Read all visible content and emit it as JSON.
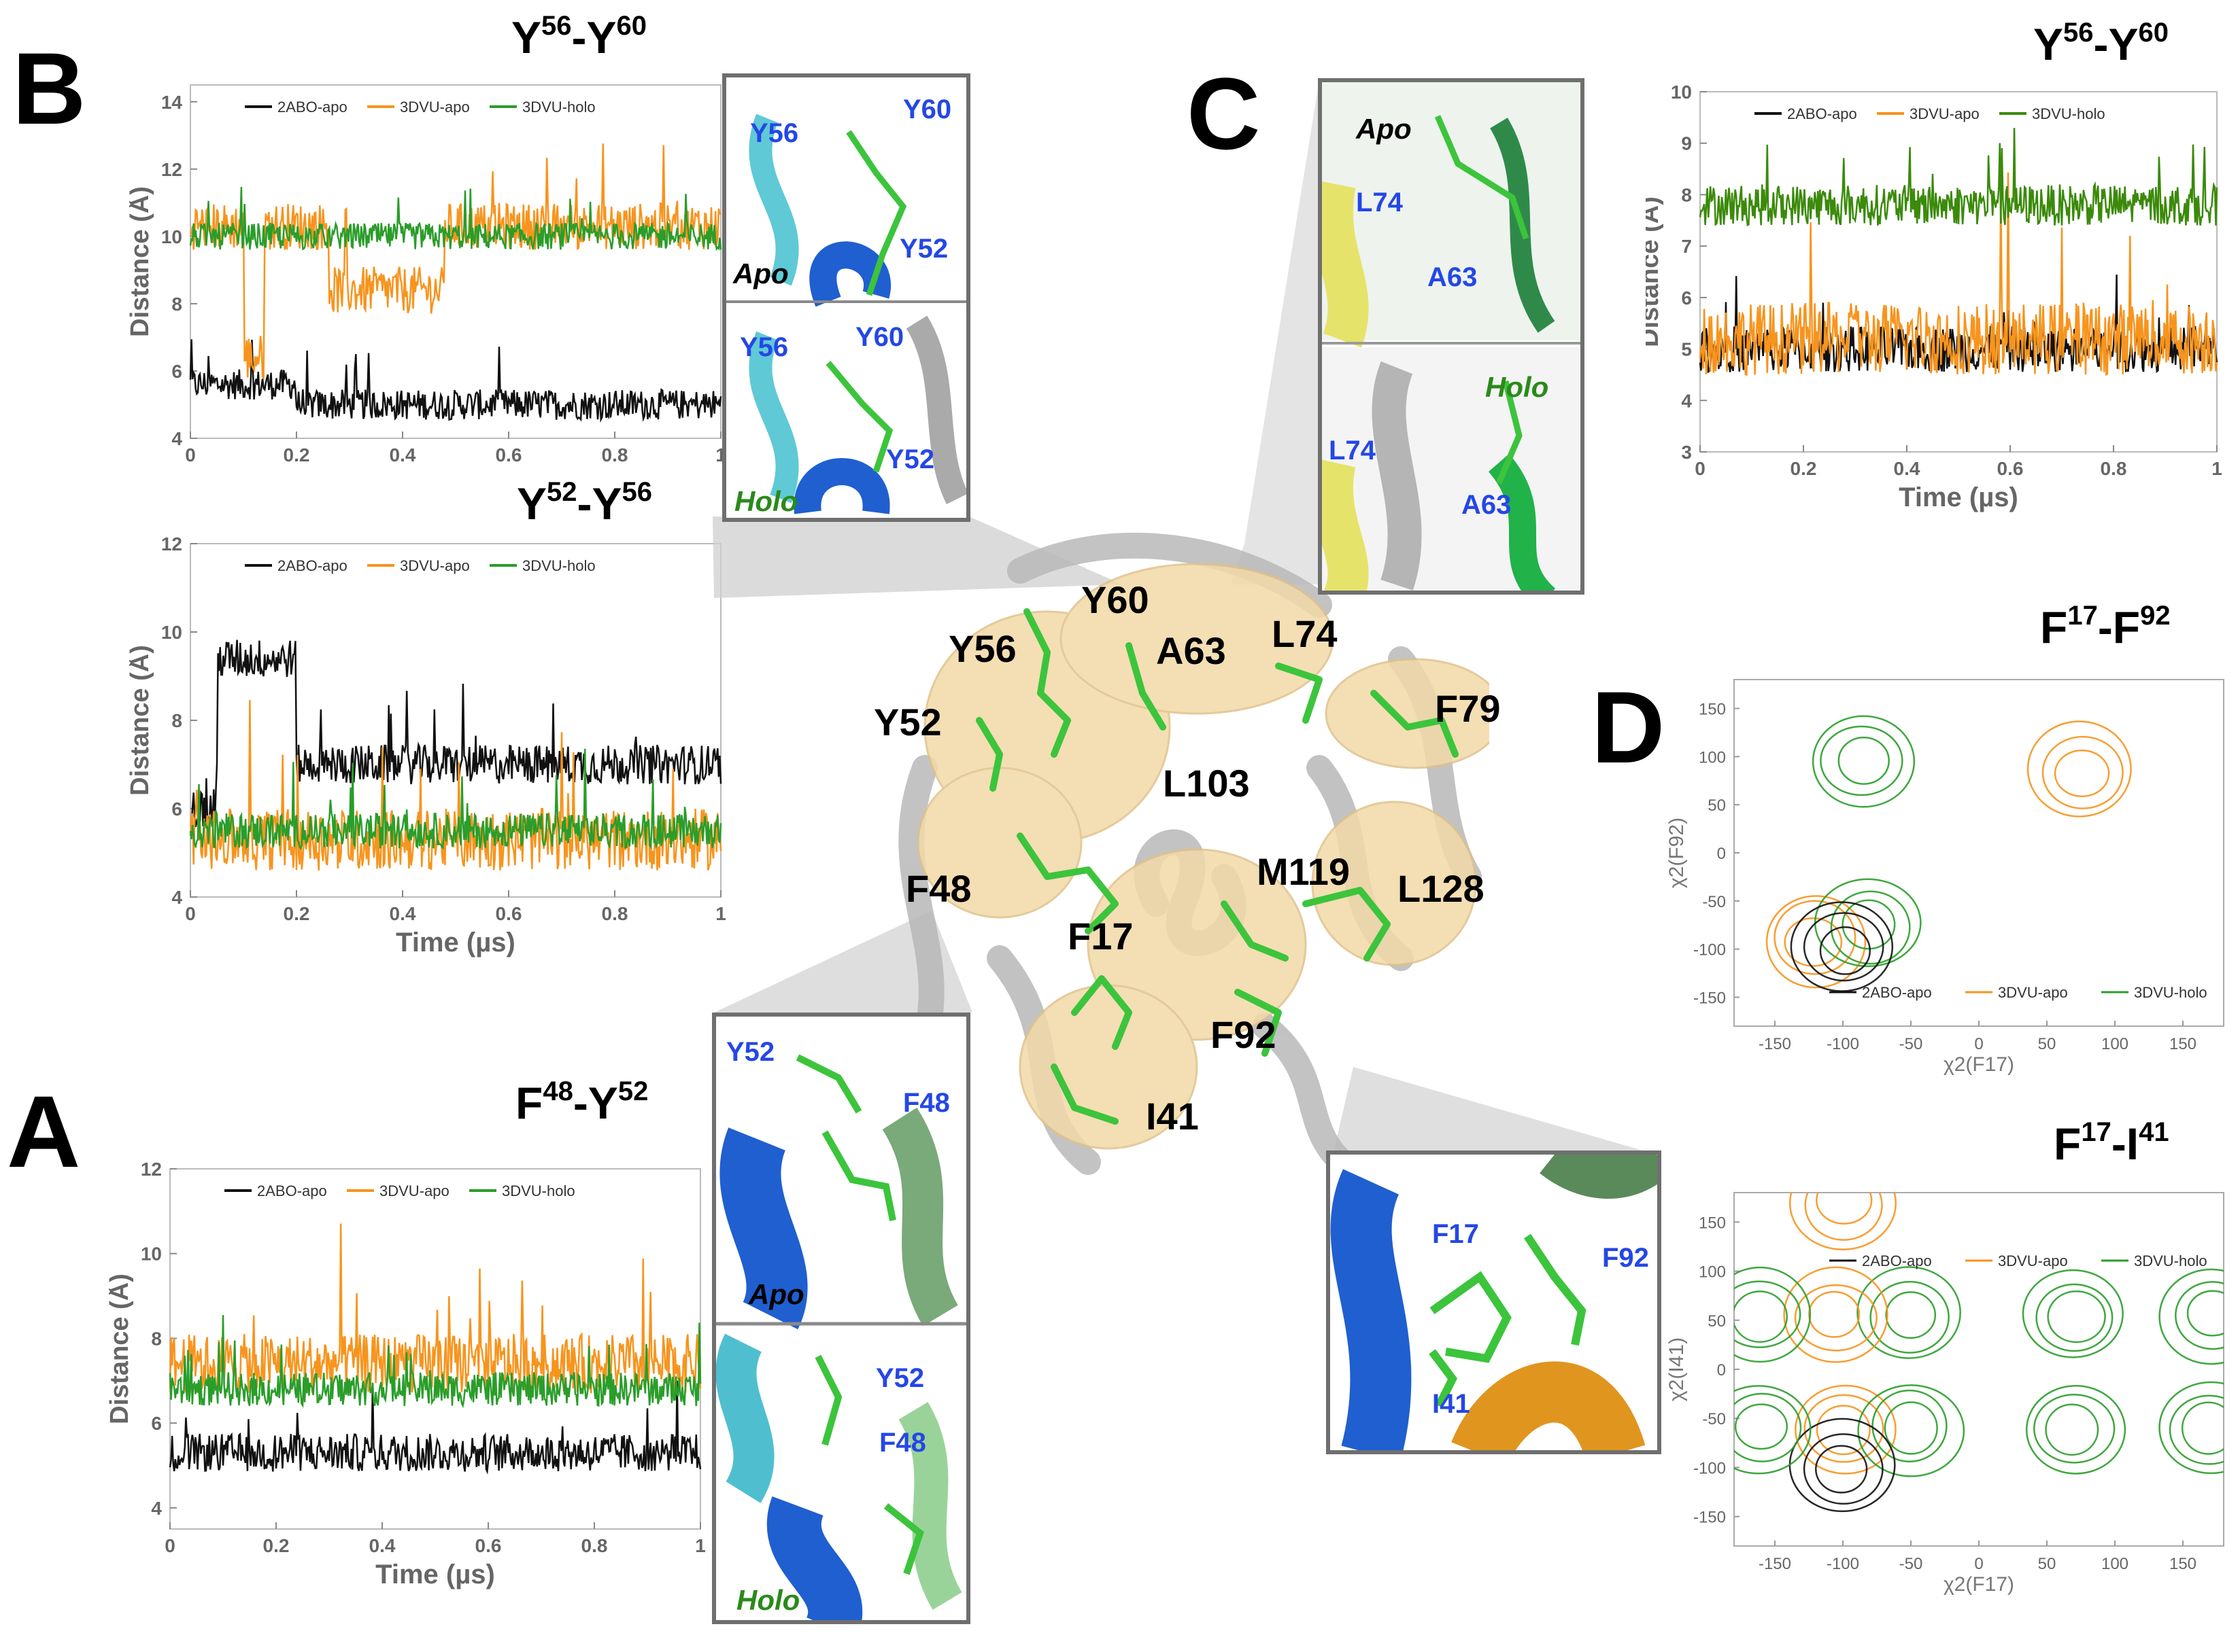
{
  "panels": {
    "A": "A",
    "B": "B",
    "C": "C",
    "D": "D"
  },
  "colors": {
    "black": "#111111",
    "orange": "#f7941d",
    "green": "#2a9d2a",
    "dark_green": "#3b8a0a",
    "axis": "#888888"
  },
  "legend": [
    "2ABO-apo",
    "3DVU-apo",
    "3DVU-holo"
  ],
  "titles": {
    "b1": {
      "main": "Y",
      "sup1": "56",
      "mid": "-Y",
      "sup2": "60"
    },
    "b2": {
      "main": "Y",
      "sup1": "52",
      "mid": "-Y",
      "sup2": "56"
    },
    "a1": {
      "main": "F",
      "sup1": "48",
      "mid": "-Y",
      "sup2": "52"
    },
    "c1": {
      "main": "Y",
      "sup1": "56",
      "mid": "-Y",
      "sup2": "60"
    },
    "d1": {
      "main": "F",
      "sup1": "17",
      "mid": "-F",
      "sup2": "92"
    },
    "d2": {
      "main": "F",
      "sup1": "17",
      "mid": "-I",
      "sup2": "41"
    }
  },
  "chart_data": [
    {
      "id": "B-Y56-Y60",
      "type": "line",
      "title": "Y56-Y60",
      "xlabel": "",
      "ylabel": "Distance (Å)",
      "xlim": [
        0,
        1
      ],
      "ylim": [
        4,
        14.5
      ],
      "xticks": [
        "0",
        "0.2",
        "0.4",
        "0.6",
        "0.8",
        "1"
      ],
      "yticks": [
        "4",
        "6",
        "8",
        "10",
        "12",
        "14"
      ],
      "series": [
        {
          "name": "2ABO-apo",
          "mean": 5.0
        },
        {
          "name": "3DVU-apo",
          "mean": 10.3
        },
        {
          "name": "3DVU-holo",
          "mean": 10.0
        }
      ]
    },
    {
      "id": "B-Y52-Y56",
      "type": "line",
      "title": "Y52-Y56",
      "xlabel": "Time (µs)",
      "ylabel": "Distance (Å)",
      "xlim": [
        0,
        1
      ],
      "ylim": [
        4,
        12
      ],
      "xticks": [
        "0",
        "0.2",
        "0.4",
        "0.6",
        "0.8",
        "1"
      ],
      "yticks": [
        "4",
        "6",
        "8",
        "10",
        "12"
      ],
      "series": [
        {
          "name": "2ABO-apo",
          "mean": 7.0
        },
        {
          "name": "3DVU-apo",
          "mean": 5.3
        },
        {
          "name": "3DVU-holo",
          "mean": 5.5
        }
      ]
    },
    {
      "id": "A-F48-Y52",
      "type": "line",
      "title": "F48-Y52",
      "xlabel": "Time (µs)",
      "ylabel": "Distance (Å)",
      "xlim": [
        0,
        1
      ],
      "ylim": [
        3.5,
        12
      ],
      "xticks": [
        "0",
        "0.2",
        "0.4",
        "0.6",
        "0.8",
        "1"
      ],
      "yticks": [
        "4",
        "6",
        "8",
        "10",
        "12"
      ],
      "series": [
        {
          "name": "2ABO-apo",
          "mean": 5.3
        },
        {
          "name": "3DVU-apo",
          "mean": 7.4
        },
        {
          "name": "3DVU-holo",
          "mean": 6.8
        }
      ]
    },
    {
      "id": "C-Y56-Y60",
      "type": "line",
      "title": "Y56-Y60",
      "xlabel": "Time (µs)",
      "ylabel": "Distance (Å)",
      "xlim": [
        0,
        1
      ],
      "ylim": [
        3,
        10
      ],
      "xticks": [
        "0",
        "0.2",
        "0.4",
        "0.6",
        "0.8",
        "1"
      ],
      "yticks": [
        "3",
        "4",
        "5",
        "6",
        "7",
        "8",
        "9",
        "10"
      ],
      "series": [
        {
          "name": "2ABO-apo",
          "mean": 5.0
        },
        {
          "name": "3DVU-apo",
          "mean": 5.2
        },
        {
          "name": "3DVU-holo",
          "mean": 7.8
        }
      ]
    },
    {
      "id": "D-F17-F92",
      "type": "scatter",
      "title": "F17-F92",
      "xlabel": "χ2(F17)",
      "ylabel": "χ2(F92)",
      "xlim": [
        -180,
        180
      ],
      "ylim": [
        -180,
        180
      ],
      "xticks": [
        "-150",
        "-100",
        "-50",
        "0",
        "50",
        "100",
        "150"
      ],
      "yticks": [
        "150",
        "100",
        "50",
        "0",
        "-50",
        "-100",
        "-150"
      ],
      "clusters": [
        {
          "series": "3DVU-holo",
          "x": -85,
          "y": 95
        },
        {
          "series": "3DVU-apo",
          "x": 75,
          "y": 85
        },
        {
          "series": "3DVU-apo",
          "x": -120,
          "y": -90
        },
        {
          "series": "3DVU-holo",
          "x": -80,
          "y": -75
        },
        {
          "series": "2ABO-apo",
          "x": -100,
          "y": -100
        }
      ]
    },
    {
      "id": "D-F17-I41",
      "type": "scatter",
      "title": "F17-I41",
      "xlabel": "χ2(F17)",
      "ylabel": "χ2(I41)",
      "xlim": [
        -180,
        180
      ],
      "ylim": [
        -180,
        180
      ],
      "xticks": [
        "-150",
        "-100",
        "-50",
        "0",
        "50",
        "100",
        "150"
      ],
      "yticks": [
        "150",
        "100",
        "50",
        "0",
        "-50",
        "-100",
        "-150"
      ],
      "clusters": [
        {
          "series": "3DVU-apo",
          "x": -100,
          "y": 170
        },
        {
          "series": "3DVU-holo",
          "x": -50,
          "y": 55
        },
        {
          "series": "3DVU-apo",
          "x": -105,
          "y": 55
        },
        {
          "series": "3DVU-holo",
          "x": 70,
          "y": 55
        },
        {
          "series": "3DVU-holo",
          "x": 170,
          "y": 55
        },
        {
          "series": "3DVU-apo",
          "x": -100,
          "y": -60
        },
        {
          "series": "3DVU-holo",
          "x": -50,
          "y": -60
        },
        {
          "series": "3DVU-holo",
          "x": 70,
          "y": -60
        },
        {
          "series": "3DVU-holo",
          "x": 170,
          "y": -60
        },
        {
          "series": "2ABO-apo",
          "x": -100,
          "y": -100
        },
        {
          "series": "3DVU-holo",
          "x": -160,
          "y": -60
        },
        {
          "series": "3DVU-holo",
          "x": -160,
          "y": 55
        }
      ]
    }
  ],
  "center_residues": [
    "Y60",
    "Y56",
    "A63",
    "L74",
    "Y52",
    "F79",
    "L103",
    "F48",
    "M119",
    "L128",
    "F17",
    "F92",
    "I41"
  ],
  "insets": {
    "b": {
      "apo": "Apo",
      "holo": "Holo",
      "res_top": [
        "Y56",
        "Y60",
        "Y52"
      ],
      "res_bot": [
        "Y56",
        "Y60",
        "Y52"
      ]
    },
    "c": {
      "apo": "Apo",
      "holo": "Holo",
      "res_top": [
        "L74",
        "A63"
      ],
      "res_bot": [
        "L74",
        "A63"
      ]
    },
    "a": {
      "apo": "Apo",
      "holo": "Holo",
      "res_top": [
        "Y52",
        "F48"
      ],
      "res_bot": [
        "Y52",
        "F48"
      ]
    },
    "d": {
      "res": [
        "F17",
        "F92",
        "I41"
      ]
    }
  }
}
